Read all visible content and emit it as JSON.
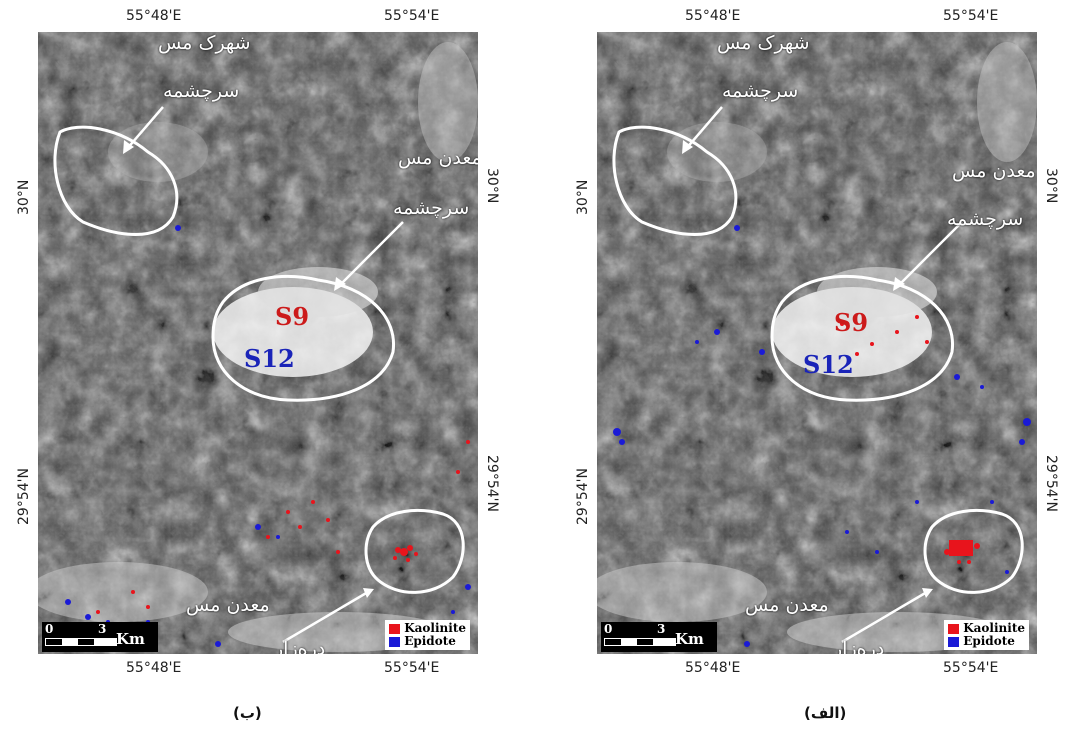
{
  "panels": [
    {
      "id": "left",
      "caption": "(ب)",
      "coords": {
        "top_left": "55°48'E",
        "top_right": "55°54'E",
        "bottom_left": "55°48'E",
        "bottom_right": "55°54'E",
        "left_upper": "30°N",
        "left_lower": "29°54'N",
        "right_upper": "30°N",
        "right_lower": "29°54'N"
      },
      "labels": {
        "town_line1": "شهرک مس",
        "town_line2": "سرچشمه",
        "mine_line1": "معدن مس",
        "mine_line2": "سرچشمه",
        "darreh_line1": "معدن مس",
        "darreh_line2": "دره‌زار"
      },
      "samples": {
        "s9": "S9",
        "s12": "S12"
      },
      "scale": {
        "zero": "0",
        "three": "3",
        "unit": "Km"
      },
      "legend": [
        {
          "label": "Kaolinite",
          "color": "#e8141c"
        },
        {
          "label": "Epidote",
          "color": "#1a1ad6"
        }
      ]
    },
    {
      "id": "right",
      "caption": "(الف)",
      "coords": {
        "top_left": "55°48'E",
        "top_right": "55°54'E",
        "bottom_left": "55°48'E",
        "bottom_right": "55°54'E",
        "left_upper": "30°N",
        "left_lower": "29°54'N",
        "right_upper": "30°N",
        "right_lower": "29°54'N"
      },
      "labels": {
        "town_line1": "شهرک مس",
        "town_line2": "سرچشمه",
        "mine_line1": "معدن مس",
        "mine_line2": "سرچشمه",
        "darreh_line1": "معدن مس",
        "darreh_line2": "دره‌زار"
      },
      "samples": {
        "s9": "S9",
        "s12": "S12"
      },
      "scale": {
        "zero": "0",
        "three": "3",
        "unit": "Km"
      },
      "legend": [
        {
          "label": "Kaolinite",
          "color": "#e8141c"
        },
        {
          "label": "Epidote",
          "color": "#1a1ad6"
        }
      ]
    }
  ]
}
